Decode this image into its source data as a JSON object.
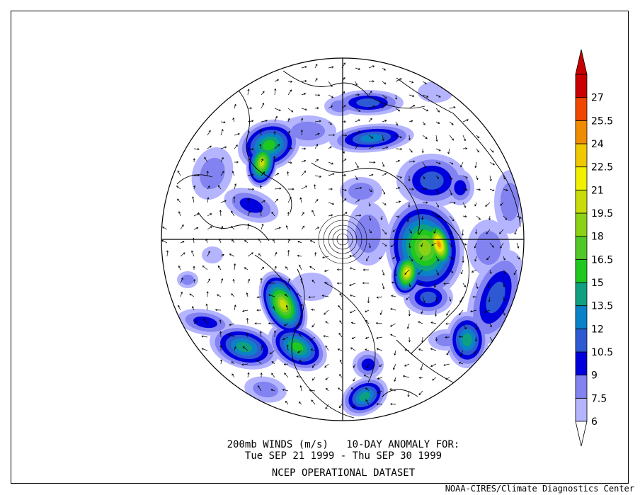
{
  "map": {
    "projection": "polar stereographic (north pole)",
    "variable": "200mb wind speed anomaly"
  },
  "colorbar": {
    "levels": [
      "6",
      "7.5",
      "9",
      "10.5",
      "12",
      "13.5",
      "15",
      "16.5",
      "18",
      "19.5",
      "21",
      "22.5",
      "24",
      "25.5",
      "27"
    ],
    "colors": [
      "#b4b4ff",
      "#8282f0",
      "#0000dc",
      "#2d5ad2",
      "#0a82c8",
      "#0ea080",
      "#1ec81e",
      "#50c828",
      "#8cd214",
      "#c8dc0a",
      "#f0f000",
      "#f0c800",
      "#f08c00",
      "#f04600",
      "#c80000"
    ],
    "below_color": "#ffffff"
  },
  "caption": {
    "line1": "200mb WINDS (m/s)   10-DAY ANOMALY FOR:",
    "line2": "Tue SEP 21 1999 - Thu SEP 30 1999",
    "line3": "NCEP OPERATIONAL DATASET"
  },
  "credit": "NOAA-CIRES/Climate Diagnostics Center"
}
